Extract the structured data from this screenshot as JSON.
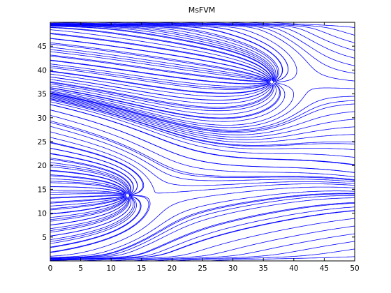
{
  "chart_data": {
    "type": "streamline",
    "title": "MsFVM",
    "xlabel": "",
    "ylabel": "",
    "xlim": [
      0,
      50
    ],
    "ylim": [
      0,
      50
    ],
    "xticks": [
      0,
      5,
      10,
      15,
      20,
      25,
      30,
      35,
      40,
      45,
      50
    ],
    "yticks": [
      5,
      10,
      15,
      20,
      25,
      30,
      35,
      40,
      45
    ],
    "grid": false,
    "legend": "none",
    "line_color": "#0000ff",
    "critical_points": [
      {
        "x": 12.7,
        "y": 13.7
      },
      {
        "x": 36.4,
        "y": 37.5
      }
    ]
  }
}
